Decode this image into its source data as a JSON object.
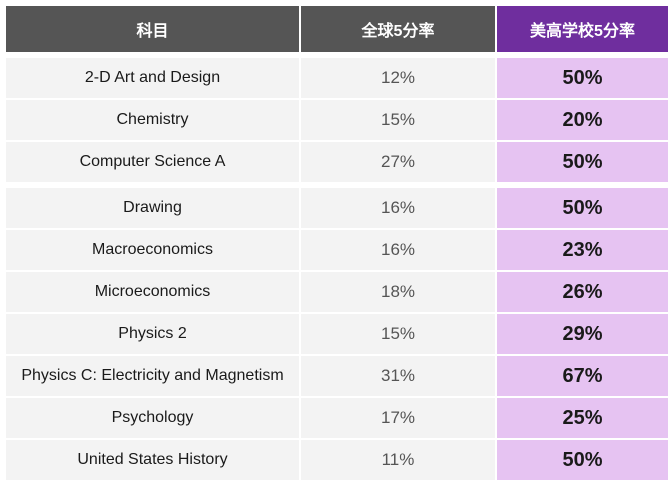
{
  "headers": {
    "subject": "科目",
    "global_rate": "全球5分率",
    "us_rate": "美高学校5分率"
  },
  "colors": {
    "header_gray": "#555555",
    "header_purple": "#6f2e9e",
    "row_gray": "#f3f3f3",
    "row_purple": "#e6c3f2"
  },
  "rows": [
    {
      "subject": "2-D Art and Design",
      "global": "12%",
      "us": "50%"
    },
    {
      "subject": "Chemistry",
      "global": "15%",
      "us": "20%"
    },
    {
      "subject": "Computer Science A",
      "global": "27%",
      "us": "50%"
    },
    {
      "subject": "Drawing",
      "global": "16%",
      "us": "50%"
    },
    {
      "subject": "Macroeconomics",
      "global": "16%",
      "us": "23%"
    },
    {
      "subject": "Microeconomics",
      "global": "18%",
      "us": "26%"
    },
    {
      "subject": "Physics 2",
      "global": "15%",
      "us": "29%"
    },
    {
      "subject": "Physics C: Electricity and Magnetism",
      "global": "31%",
      "us": "67%"
    },
    {
      "subject": "Psychology",
      "global": "17%",
      "us": "25%"
    },
    {
      "subject": "United States History",
      "global": "11%",
      "us": "50%"
    }
  ]
}
